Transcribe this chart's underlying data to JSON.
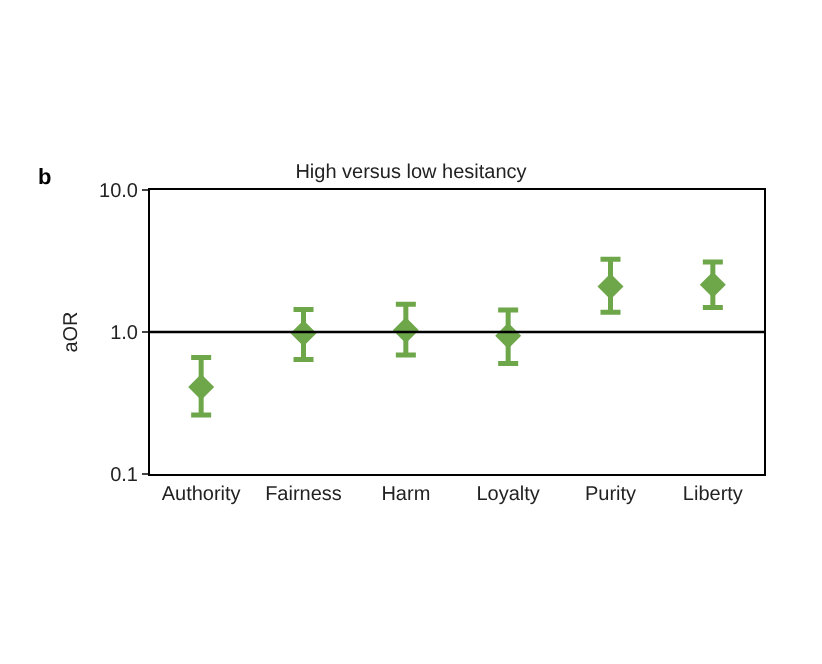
{
  "chart_data": {
    "type": "scatter",
    "title": "High versus low hesitancy",
    "ylabel": "aOR",
    "annotations": [
      "b"
    ],
    "categories": [
      "Authority",
      "Fairness",
      "Harm",
      "Loyalty",
      "Purity",
      "Liberty"
    ],
    "series": [
      {
        "color": "#6ea64a",
        "values": [
          0.41,
          0.98,
          1.03,
          0.94,
          2.09,
          2.15
        ],
        "errors": [
          [
            0.26,
            0.66
          ],
          [
            0.64,
            1.44
          ],
          [
            0.69,
            1.57
          ],
          [
            0.6,
            1.43
          ],
          [
            1.38,
            3.25
          ],
          [
            1.49,
            3.11
          ]
        ]
      }
    ],
    "marker": "diamond",
    "log": true,
    "ylim": [
      0.1,
      10
    ],
    "yticks": [
      {
        "value": 0.1,
        "label": "0.1"
      },
      {
        "value": 1,
        "label": "1.0"
      },
      {
        "value": 10,
        "label": "10.0"
      }
    ],
    "ref_lines": [
      {
        "axis": "y",
        "value": 1,
        "color": "#000000"
      }
    ]
  }
}
